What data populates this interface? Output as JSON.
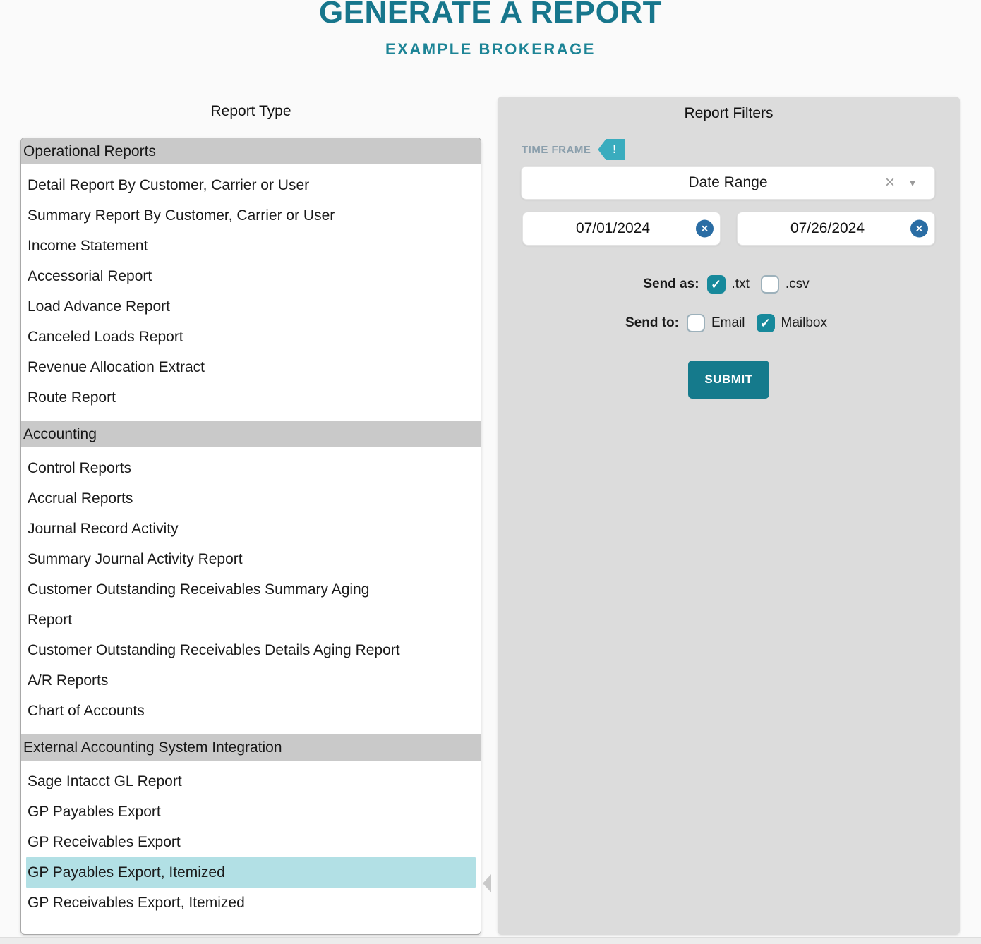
{
  "page": {
    "title": "GENERATE A REPORT",
    "subtitle": "EXAMPLE BROKERAGE"
  },
  "report_type": {
    "heading": "Report Type",
    "sections": [
      {
        "label": "Operational Reports",
        "items": [
          {
            "label": "Detail Report By Customer, Carrier or User",
            "selected": false
          },
          {
            "label": "Summary Report By Customer, Carrier or User",
            "selected": false
          },
          {
            "label": "Income Statement",
            "selected": false
          },
          {
            "label": "Accessorial Report",
            "selected": false
          },
          {
            "label": "Load Advance Report",
            "selected": false
          },
          {
            "label": "Canceled Loads Report",
            "selected": false
          },
          {
            "label": "Revenue Allocation Extract",
            "selected": false
          },
          {
            "label": "Route Report",
            "selected": false
          }
        ]
      },
      {
        "label": "Accounting",
        "items": [
          {
            "label": "Control Reports",
            "selected": false
          },
          {
            "label": "Accrual Reports",
            "selected": false
          },
          {
            "label": "Journal Record Activity",
            "selected": false
          },
          {
            "label": "Summary Journal Activity Report",
            "selected": false
          },
          {
            "label": "Customer Outstanding Receivables Summary Aging\nReport",
            "selected": false
          },
          {
            "label": "Customer Outstanding Receivables Details Aging Report",
            "selected": false
          },
          {
            "label": "A/R Reports",
            "selected": false
          },
          {
            "label": "Chart of Accounts",
            "selected": false
          }
        ]
      },
      {
        "label": "External Accounting System Integration",
        "items": [
          {
            "label": "Sage Intacct GL Report",
            "selected": false
          },
          {
            "label": "GP Payables Export",
            "selected": false
          },
          {
            "label": "GP Receivables Export",
            "selected": false
          },
          {
            "label": "GP Payables Export, Itemized",
            "selected": true
          },
          {
            "label": "GP Receivables Export, Itemized",
            "selected": false
          }
        ]
      }
    ]
  },
  "filters": {
    "heading": "Report Filters",
    "time_frame_label": "TIME FRAME",
    "alert_icon_glyph": "!",
    "date_range": {
      "value": "Date Range",
      "clear_icon": "×",
      "caret_icon": "▼"
    },
    "start_date": "07/01/2024",
    "end_date": "07/26/2024",
    "clear_circle_icon": "✕",
    "check_icon": "✓",
    "send_as": {
      "label": "Send as:",
      "options": [
        {
          "label": ".txt",
          "checked": true
        },
        {
          "label": ".csv",
          "checked": false
        }
      ]
    },
    "send_to": {
      "label": "Send to:",
      "options": [
        {
          "label": "Email",
          "checked": false
        },
        {
          "label": "Mailbox",
          "checked": true
        }
      ]
    },
    "submit_label": "SUBMIT"
  },
  "colors": {
    "title_teal": "#17768c",
    "accent_teal": "#157a8c",
    "checkbox_teal": "#17899b",
    "tag_teal": "#3aacbe",
    "selected_item_bg": "#b2e0e5",
    "section_header_bg": "#c9c9c9",
    "filters_panel_bg": "#dcdcdc",
    "clear_circle_blue": "#2a6da4",
    "time_frame_label": "#8b9fac"
  }
}
